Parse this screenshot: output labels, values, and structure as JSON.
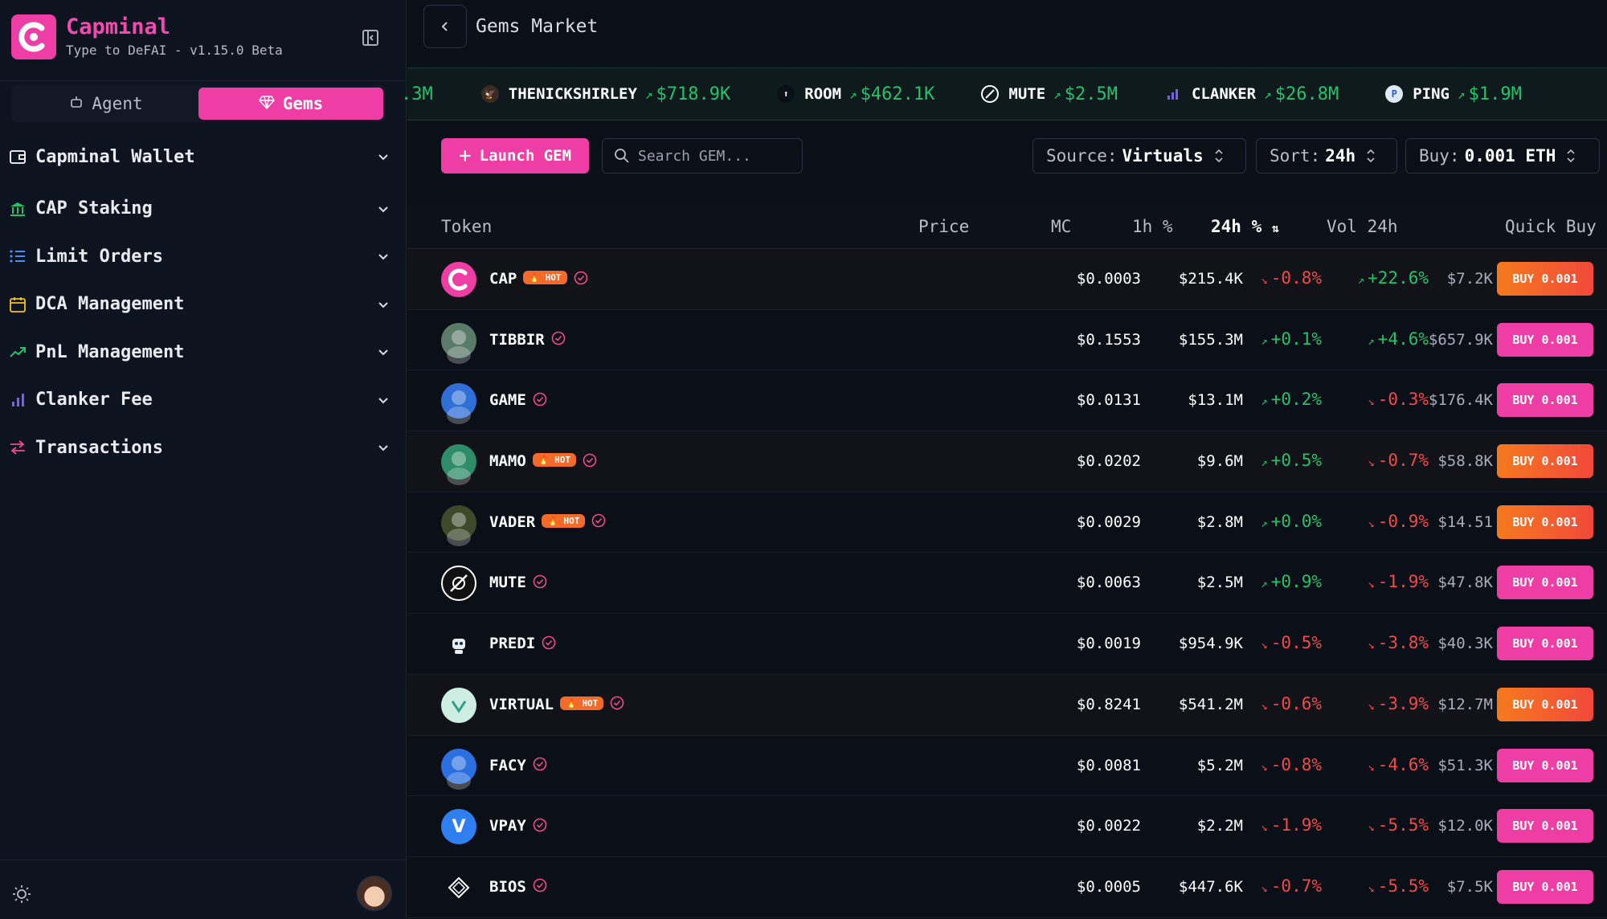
{
  "app": {
    "name": "Capminal",
    "subtitle": "Type to DeFAI - v1.15.0 Beta",
    "brand_color": "#ee3ea6"
  },
  "mode_switch": {
    "agent_label": "Agent",
    "gems_label": "Gems",
    "active": "Gems"
  },
  "sidebar": {
    "items": [
      {
        "label": "Capminal Wallet",
        "icon": "wallet-icon"
      },
      {
        "label": "CAP Staking",
        "icon": "bank-icon"
      },
      {
        "label": "Limit Orders",
        "icon": "list-icon"
      },
      {
        "label": "DCA Management",
        "icon": "calendar-icon"
      },
      {
        "label": "PnL Management",
        "icon": "trend-up-icon"
      },
      {
        "label": "Clanker Fee",
        "icon": "bar-chart-icon"
      },
      {
        "label": "Transactions",
        "icon": "swap-icon"
      }
    ]
  },
  "header": {
    "title": "Gems Market"
  },
  "ticker": {
    "first_partial": ".3M",
    "items": [
      {
        "name": "THENICKSHIRLEY",
        "value": "$718.9K"
      },
      {
        "name": "ROOM",
        "value": "$462.1K"
      },
      {
        "name": "MUTE",
        "value": "$2.5M"
      },
      {
        "name": "CLANKER",
        "value": "$26.8M"
      },
      {
        "name": "PING",
        "value": "$1.9M"
      }
    ]
  },
  "controls": {
    "launch_label": "Launch GEM",
    "search_placeholder": "Search GEM...",
    "source_label": "Source:",
    "source_value": "Virtuals",
    "sort_label": "Sort:",
    "sort_value": "24h",
    "buy_label": "Buy:",
    "buy_value": "0.001 ETH"
  },
  "table": {
    "headers": {
      "token": "Token",
      "price": "Price",
      "mc": "MC",
      "h1": "1h %",
      "h24": "24h %",
      "vol": "Vol 24h",
      "quick_buy": "Quick Buy"
    },
    "rows": [
      {
        "name": "CAP",
        "hot": true,
        "price": "$0.0003",
        "mc": "$215.4K",
        "h1": "-0.8%",
        "h1_dir": "down",
        "h24": "+22.6%",
        "h24_dir": "up",
        "vol": "$7.2K",
        "buy": "BUY 0.001",
        "icon_color": "#ee3ea6"
      },
      {
        "name": "TIBBIR",
        "hot": false,
        "price": "$0.1553",
        "mc": "$155.3M",
        "h1": "+0.1%",
        "h1_dir": "up",
        "h24": "+4.6%",
        "h24_dir": "up",
        "vol": "$657.9K",
        "buy": "BUY 0.001",
        "icon_color": "#5c7a6a"
      },
      {
        "name": "GAME",
        "hot": false,
        "price": "$0.0131",
        "mc": "$13.1M",
        "h1": "+0.2%",
        "h1_dir": "up",
        "h24": "-0.3%",
        "h24_dir": "down",
        "vol": "$176.4K",
        "buy": "BUY 0.001",
        "icon_color": "#2f6fd6"
      },
      {
        "name": "MAMO",
        "hot": true,
        "price": "$0.0202",
        "mc": "$9.6M",
        "h1": "+0.5%",
        "h1_dir": "up",
        "h24": "-0.7%",
        "h24_dir": "down",
        "vol": "$58.8K",
        "buy": "BUY 0.001",
        "icon_color": "#2f8c6a"
      },
      {
        "name": "VADER",
        "hot": true,
        "price": "$0.0029",
        "mc": "$2.8M",
        "h1": "+0.0%",
        "h1_dir": "up",
        "h24": "-0.9%",
        "h24_dir": "down",
        "vol": "$14.51",
        "buy": "BUY 0.001",
        "icon_color": "#3d4a2a"
      },
      {
        "name": "MUTE",
        "hot": false,
        "price": "$0.0063",
        "mc": "$2.5M",
        "h1": "+0.9%",
        "h1_dir": "up",
        "h24": "-1.9%",
        "h24_dir": "down",
        "vol": "$47.8K",
        "buy": "BUY 0.001",
        "icon_color": "#111111"
      },
      {
        "name": "PREDI",
        "hot": false,
        "price": "$0.0019",
        "mc": "$954.9K",
        "h1": "-0.5%",
        "h1_dir": "down",
        "h24": "-3.8%",
        "h24_dir": "down",
        "vol": "$40.3K",
        "buy": "BUY 0.001",
        "icon_color": "#0b0f17"
      },
      {
        "name": "VIRTUAL",
        "hot": true,
        "price": "$0.8241",
        "mc": "$541.2M",
        "h1": "-0.6%",
        "h1_dir": "down",
        "h24": "-3.9%",
        "h24_dir": "down",
        "vol": "$12.7M",
        "buy": "BUY 0.001",
        "icon_color": "#cfeee3"
      },
      {
        "name": "FACY",
        "hot": false,
        "price": "$0.0081",
        "mc": "$5.2M",
        "h1": "-0.8%",
        "h1_dir": "down",
        "h24": "-4.6%",
        "h24_dir": "down",
        "vol": "$51.3K",
        "buy": "BUY 0.001",
        "icon_color": "#2b6fe0"
      },
      {
        "name": "VPAY",
        "hot": false,
        "price": "$0.0022",
        "mc": "$2.2M",
        "h1": "-1.9%",
        "h1_dir": "down",
        "h24": "-5.5%",
        "h24_dir": "down",
        "vol": "$12.0K",
        "buy": "BUY 0.001",
        "icon_color": "#2f7ff0"
      },
      {
        "name": "BIOS",
        "hot": false,
        "price": "$0.0005",
        "mc": "$447.6K",
        "h1": "-0.7%",
        "h1_dir": "down",
        "h24": "-5.5%",
        "h24_dir": "down",
        "vol": "$7.5K",
        "buy": "BUY 0.001",
        "icon_color": "#0b0f17"
      }
    ]
  },
  "colors": {
    "up": "#22c36b",
    "down": "#f14a4a",
    "hot": "#f36a2b",
    "accent": "#ee3ea6"
  }
}
